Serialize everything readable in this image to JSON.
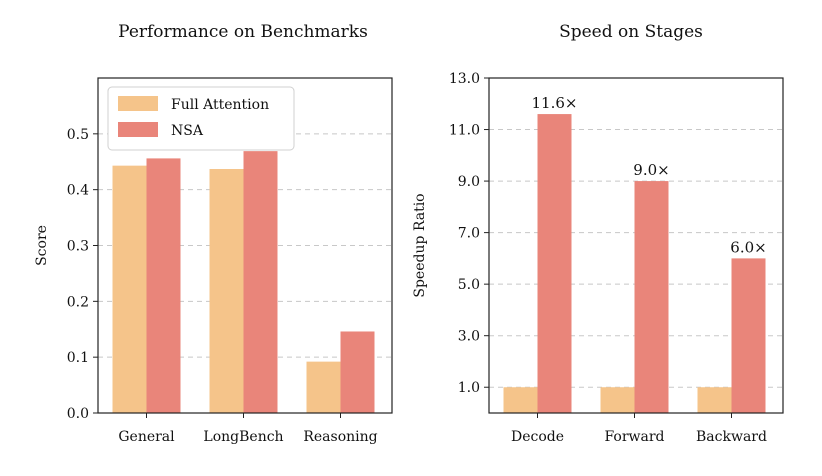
{
  "chart_data": [
    {
      "type": "bar",
      "title": "Performance on Benchmarks",
      "xlabel": "",
      "ylabel": "Score",
      "categories": [
        "General",
        "LongBench",
        "Reasoning"
      ],
      "series": [
        {
          "name": "Full Attention",
          "color": "#f5c48a",
          "values": [
            0.443,
            0.437,
            0.092
          ]
        },
        {
          "name": "NSA",
          "color": "#e9857a",
          "values": [
            0.456,
            0.469,
            0.146
          ]
        }
      ],
      "ylim": [
        0,
        0.6
      ],
      "yticks": [
        0.0,
        0.1,
        0.2,
        0.3,
        0.4,
        0.5
      ],
      "ytick_labels": [
        "0.0",
        "0.1",
        "0.2",
        "0.3",
        "0.4",
        "0.5"
      ],
      "grid": "horizontal dashed",
      "legend": "top-left"
    },
    {
      "type": "bar",
      "title": "Speed on Stages",
      "xlabel": "",
      "ylabel": "Speedup Ratio",
      "categories": [
        "Decode",
        "Forward",
        "Backward"
      ],
      "series": [
        {
          "color": "#f5c48a",
          "values": [
            1.0,
            1.0,
            1.0
          ]
        },
        {
          "color": "#e9857a",
          "values": [
            11.6,
            9.0,
            6.0
          ],
          "labels": [
            "11.6×",
            "9.0×",
            "6.0×"
          ]
        }
      ],
      "ylim": [
        0,
        13.0
      ],
      "yticks": [
        1.0,
        3.0,
        5.0,
        7.0,
        9.0,
        11.0,
        13.0
      ],
      "ytick_labels": [
        "1.0",
        "3.0",
        "5.0",
        "7.0",
        "9.0",
        "11.0",
        "13.0"
      ],
      "grid": "horizontal dashed",
      "legend": "none"
    }
  ]
}
